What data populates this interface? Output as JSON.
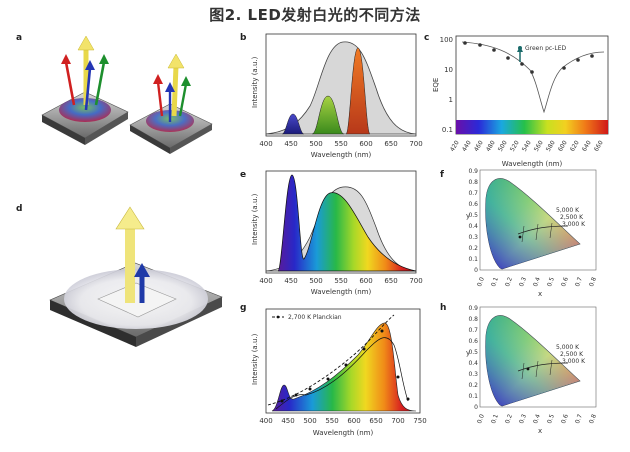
{
  "title": "图2. LED发射白光的不同方法",
  "panel_labels": [
    "a",
    "b",
    "c",
    "d",
    "e",
    "f",
    "g",
    "h"
  ],
  "axes": {
    "intensity_label": "Intensity (a.u.)",
    "wavelength_label": "Wavelength (nm)",
    "eqe_label": "EQE",
    "x_label": "x",
    "y_label": "y"
  },
  "panel_c": {
    "annotation": "Green pc-LED",
    "y_ticks": [
      "100",
      "10",
      "1",
      "0.1"
    ],
    "x_ticks": [
      "420",
      "440",
      "460",
      "480",
      "500",
      "520",
      "540",
      "560",
      "580",
      "600",
      "620",
      "640",
      "660"
    ]
  },
  "panel_b": {
    "x_ticks": [
      "400",
      "450",
      "500",
      "550",
      "600",
      "650",
      "700"
    ]
  },
  "panel_e": {
    "x_ticks": [
      "400",
      "450",
      "500",
      "550",
      "600",
      "650",
      "700"
    ]
  },
  "panel_g": {
    "legend": "2,700 K Planckian",
    "x_ticks": [
      "400",
      "450",
      "500",
      "550",
      "600",
      "650",
      "700",
      "750"
    ]
  },
  "cie": {
    "y_ticks": [
      "0.9",
      "0.8",
      "0.7",
      "0.6",
      "0.5",
      "0.4",
      "0.3",
      "0.2",
      "0.1",
      "0"
    ],
    "x_ticks": [
      "0.0",
      "0.1",
      "0.2",
      "0.3",
      "0.4",
      "0.5",
      "0.6",
      "0.7",
      "0.8"
    ],
    "cct_f": [
      "5,000 K",
      "2,500 K",
      "3,000 K"
    ],
    "cct_h": [
      "5,000 K",
      "2,500 K",
      "3,000 K"
    ]
  },
  "chart_data": [
    {
      "type": "line",
      "panel": "b",
      "xlim": [
        400,
        700
      ],
      "series": [
        {
          "values_desc": "blue peak",
          "x": [
            430,
            450,
            470
          ],
          "y": [
            0,
            0.18,
            0
          ]
        },
        {
          "values_desc": "green peak",
          "x": [
            505,
            530,
            555
          ],
          "y": [
            0,
            0.5,
            0
          ]
        },
        {
          "values_desc": "red peak",
          "x": [
            585,
            610,
            630
          ],
          "y": [
            0,
            0.95,
            0
          ]
        },
        {
          "values_desc": "reference",
          "x": [
            400,
            450,
            500,
            550,
            600,
            650,
            700
          ],
          "y": [
            0.02,
            0.15,
            0.65,
            1.0,
            0.75,
            0.2,
            0.02
          ]
        }
      ]
    },
    {
      "type": "scatter",
      "panel": "c",
      "xlim": [
        420,
        660
      ],
      "ylim": [
        0.1,
        100
      ],
      "yscale": "log",
      "series": [
        {
          "x": [
            440,
            460,
            480,
            500,
            520,
            540
          ],
          "y": [
            60,
            40,
            25,
            12,
            6,
            3
          ]
        },
        {
          "x": [
            580,
            600,
            620,
            640
          ],
          "y": [
            3,
            10,
            18,
            22
          ]
        }
      ]
    },
    {
      "type": "line",
      "panel": "e",
      "xlim": [
        400,
        700
      ],
      "series": [
        {
          "x": [
            430,
            450,
            470
          ],
          "y": [
            0,
            0.95,
            0
          ]
        },
        {
          "x": [
            480,
            550,
            650,
            700
          ],
          "y": [
            0,
            0.7,
            0.3,
            0.05
          ]
        }
      ]
    },
    {
      "type": "line",
      "panel": "g",
      "xlim": [
        400,
        750
      ],
      "series": [
        {
          "x": [
            450,
            470,
            500,
            550,
            600,
            650,
            700
          ],
          "y": [
            0.1,
            0.2,
            0.2,
            0.4,
            0.7,
            0.95,
            0.2
          ]
        }
      ]
    }
  ]
}
